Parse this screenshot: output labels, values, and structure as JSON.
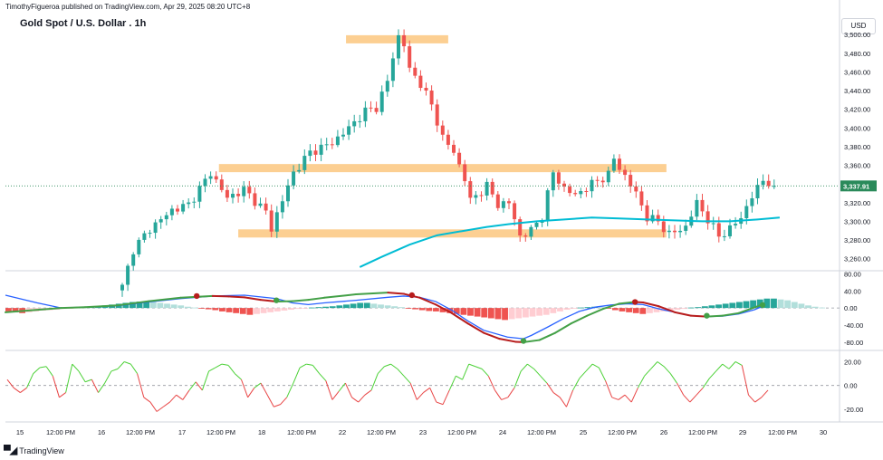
{
  "header": {
    "published": "TimothyFigueroa published on TradingView.com, Apr 29, 2025 08:20 UTC+8",
    "title": "Gold Spot / U.S. Dollar . 1h",
    "currency": "USD"
  },
  "footer": {
    "brand": "TradingView",
    "logo_icon": "tradingview-logo-icon"
  },
  "colors": {
    "up": "#26a69a",
    "down": "#ef5350",
    "zone": "#fcc77f",
    "ema": "#00bcd4",
    "fast": "#2962ff",
    "slow_up": "#43a047",
    "slow_down": "#b71c1c",
    "osc_up": "#4cd137",
    "osc_down": "#e84545",
    "last": "#2a8a5a"
  },
  "chart_data": [
    {
      "type": "candlestick",
      "title": "Gold Spot / U.S. Dollar . 1h",
      "y_ticks": [
        "3,500.00",
        "3,480.00",
        "3,460.00",
        "3,440.00",
        "3,420.00",
        "3,400.00",
        "3,380.00",
        "3,360.00",
        "3,340.00",
        "3,320.00",
        "3,300.00",
        "3,280.00",
        "3,260.00"
      ],
      "ylim": [
        3248,
        3508
      ],
      "x_ticks": [
        "15",
        "12:00 PM",
        "16",
        "12:00 PM",
        "17",
        "12:00 PM",
        "18",
        "12:00 PM",
        "22",
        "12:00 PM",
        "23",
        "12:00 PM",
        "24",
        "12:00 PM",
        "25",
        "12:00 PM",
        "26",
        "12:00 PM",
        "29",
        "12:00 PM",
        "30"
      ],
      "last_price": "3,337.91",
      "path_points": [
        [
          0,
          3230
        ],
        [
          2,
          3270
        ],
        [
          5,
          3292
        ],
        [
          9,
          3312
        ],
        [
          12,
          3318
        ],
        [
          14,
          3335
        ],
        [
          16,
          3352
        ],
        [
          19,
          3325
        ],
        [
          22,
          3334
        ],
        [
          24,
          3322
        ],
        [
          26,
          3310
        ],
        [
          27,
          3292
        ],
        [
          28,
          3308
        ],
        [
          31,
          3352
        ],
        [
          34,
          3374
        ],
        [
          38,
          3384
        ],
        [
          41,
          3400
        ],
        [
          44,
          3418
        ],
        [
          46,
          3422
        ],
        [
          48,
          3450
        ],
        [
          49,
          3476
        ],
        [
          50,
          3498
        ],
        [
          51,
          3490
        ],
        [
          52,
          3462
        ],
        [
          54,
          3448
        ],
        [
          56,
          3424
        ],
        [
          58,
          3390
        ],
        [
          60,
          3374
        ],
        [
          62,
          3346
        ],
        [
          63,
          3322
        ],
        [
          66,
          3338
        ],
        [
          68,
          3318
        ],
        [
          70,
          3320
        ],
        [
          72,
          3284
        ],
        [
          74,
          3290
        ],
        [
          76,
          3306
        ],
        [
          78,
          3352
        ],
        [
          80,
          3335
        ],
        [
          82,
          3328
        ],
        [
          85,
          3340
        ],
        [
          88,
          3350
        ],
        [
          89,
          3367
        ],
        [
          91,
          3348
        ],
        [
          93,
          3330
        ],
        [
          95,
          3304
        ],
        [
          97,
          3300
        ],
        [
          99,
          3286
        ],
        [
          102,
          3294
        ],
        [
          104,
          3320
        ],
        [
          106,
          3302
        ],
        [
          108,
          3284
        ],
        [
          110,
          3292
        ],
        [
          112,
          3304
        ],
        [
          114,
          3327
        ],
        [
          116,
          3344
        ],
        [
          118,
          3340
        ]
      ],
      "zones": [
        {
          "x_start": 40.5,
          "x_end": 59,
          "price": 3495
        },
        {
          "x_start": 17.5,
          "x_end": 98.5,
          "price": 3357
        },
        {
          "x_start": 21,
          "x_end": 98.5,
          "price": 3287
        }
      ],
      "ema_points": [
        [
          43,
          3251
        ],
        [
          47,
          3262
        ],
        [
          52,
          3275
        ],
        [
          57,
          3285
        ],
        [
          62,
          3290
        ],
        [
          66,
          3294
        ],
        [
          70,
          3297
        ],
        [
          75,
          3300
        ],
        [
          80,
          3302
        ],
        [
          85,
          3304
        ],
        [
          90,
          3303
        ],
        [
          95,
          3302
        ],
        [
          100,
          3301
        ],
        [
          105,
          3300
        ],
        [
          110,
          3300
        ],
        [
          115,
          3302
        ],
        [
          119,
          3304
        ]
      ]
    },
    {
      "type": "line",
      "name_shown": false,
      "y_ticks": [
        "80.00",
        "40.00",
        "0.00",
        "-40.00",
        "-80.00"
      ],
      "ylim": [
        -95,
        85
      ],
      "fast_points": [
        [
          0,
          30
        ],
        [
          4,
          12
        ],
        [
          7,
          0
        ],
        [
          10,
          2
        ],
        [
          14,
          5
        ],
        [
          18,
          14
        ],
        [
          22,
          22
        ],
        [
          26,
          28
        ],
        [
          30,
          30
        ],
        [
          34,
          22
        ],
        [
          36,
          12
        ],
        [
          38,
          8
        ],
        [
          40,
          12
        ],
        [
          44,
          18
        ],
        [
          48,
          25
        ],
        [
          50,
          28
        ],
        [
          52,
          25
        ],
        [
          54,
          15
        ],
        [
          56,
          -5
        ],
        [
          58,
          -30
        ],
        [
          60,
          -52
        ],
        [
          63,
          -68
        ],
        [
          65,
          -72
        ],
        [
          66,
          -64
        ],
        [
          68,
          -45
        ],
        [
          70,
          -25
        ],
        [
          72,
          -8
        ],
        [
          74,
          2
        ],
        [
          76,
          7
        ],
        [
          78,
          10
        ],
        [
          80,
          8
        ],
        [
          82,
          -2
        ],
        [
          84,
          -10
        ],
        [
          86,
          -18
        ],
        [
          88,
          -20
        ],
        [
          90,
          -19
        ],
        [
          92,
          -14
        ],
        [
          94,
          -4
        ],
        [
          95,
          4
        ]
      ],
      "slow_points": [
        [
          0,
          -10
        ],
        [
          7,
          0
        ],
        [
          10,
          2
        ],
        [
          14,
          6
        ],
        [
          18,
          16
        ],
        [
          22,
          24
        ],
        [
          26,
          28
        ],
        [
          28,
          27
        ],
        [
          30,
          25
        ],
        [
          32,
          19
        ],
        [
          34,
          15
        ],
        [
          36,
          16
        ],
        [
          38,
          19
        ],
        [
          40,
          24
        ],
        [
          44,
          32
        ],
        [
          48,
          36
        ],
        [
          50,
          33
        ],
        [
          52,
          24
        ],
        [
          54,
          8
        ],
        [
          56,
          -12
        ],
        [
          58,
          -36
        ],
        [
          60,
          -58
        ],
        [
          62,
          -72
        ],
        [
          64,
          -79
        ],
        [
          65,
          -80
        ],
        [
          67,
          -75
        ],
        [
          69,
          -58
        ],
        [
          71,
          -36
        ],
        [
          73,
          -18
        ],
        [
          75,
          -2
        ],
        [
          77,
          10
        ],
        [
          79,
          14
        ],
        [
          80,
          13
        ],
        [
          82,
          4
        ],
        [
          84,
          -10
        ],
        [
          86,
          -18
        ],
        [
          88,
          -20
        ],
        [
          90,
          -18
        ],
        [
          92,
          -12
        ],
        [
          95,
          8
        ]
      ],
      "histogram": [
        -8,
        -10,
        -12,
        -10,
        -8,
        -6,
        -5,
        -4,
        -2,
        -1,
        1,
        2,
        3,
        4,
        6,
        8,
        10,
        12,
        14,
        15,
        16,
        14,
        12,
        10,
        8,
        6,
        3,
        1,
        -1,
        -3,
        -5,
        -8,
        -10,
        -12,
        -14,
        -16,
        -14,
        -12,
        -10,
        -8,
        -6,
        -4,
        -2,
        -1,
        1,
        2,
        3,
        4,
        6,
        8,
        10,
        12,
        12,
        10,
        8,
        6,
        4,
        2,
        -1,
        -3,
        -5,
        -7,
        -8,
        -10,
        -12,
        -14,
        -16,
        -18,
        -20,
        -22,
        -24,
        -26,
        -28,
        -26,
        -24,
        -22,
        -20,
        -18,
        -16,
        -12,
        -8,
        -4,
        -1,
        1,
        2,
        3,
        2,
        -1,
        -5,
        -8,
        -10,
        -12,
        -14,
        -12,
        -10,
        -8,
        -6,
        -4,
        -2,
        1,
        2,
        4,
        6,
        8,
        10,
        12,
        14,
        16,
        18,
        20,
        22,
        22,
        20,
        18,
        14,
        10,
        6,
        3,
        1
      ],
      "cross_markers": [
        [
          24,
          28,
          "down"
        ],
        [
          34,
          18,
          "up"
        ],
        [
          51,
          30,
          "down"
        ],
        [
          65,
          -77,
          "up"
        ],
        [
          79,
          14,
          "down"
        ],
        [
          88,
          -18,
          "up"
        ],
        [
          95,
          7,
          "up"
        ]
      ]
    },
    {
      "type": "line",
      "y_ticks": [
        "20.00",
        "0.00",
        "-20.00"
      ],
      "ylim": [
        -30,
        28
      ],
      "values": [
        5,
        -2,
        -6,
        -2,
        10,
        15,
        16,
        8,
        -10,
        -6,
        18,
        12,
        3,
        5,
        -6,
        2,
        12,
        14,
        20,
        18,
        10,
        -10,
        -14,
        -22,
        -18,
        -14,
        -8,
        -12,
        -4,
        3,
        -4,
        12,
        15,
        18,
        17,
        10,
        5,
        -10,
        -2,
        2,
        -8,
        -18,
        -16,
        -10,
        2,
        15,
        18,
        17,
        10,
        4,
        -12,
        -5,
        2,
        -10,
        -14,
        -8,
        -4,
        10,
        16,
        18,
        14,
        8,
        2,
        -12,
        -6,
        -2,
        -14,
        -16,
        -4,
        8,
        5,
        18,
        16,
        14,
        8,
        -4,
        -12,
        -10,
        -2,
        12,
        18,
        14,
        8,
        2,
        -6,
        -10,
        -18,
        -4,
        6,
        12,
        18,
        15,
        4,
        -10,
        -12,
        -8,
        -14,
        -2,
        8,
        14,
        20,
        16,
        10,
        2,
        -8,
        -14,
        -8,
        -2,
        6,
        12,
        18,
        14,
        20,
        17,
        -8,
        -14,
        -10,
        -4
      ]
    }
  ]
}
